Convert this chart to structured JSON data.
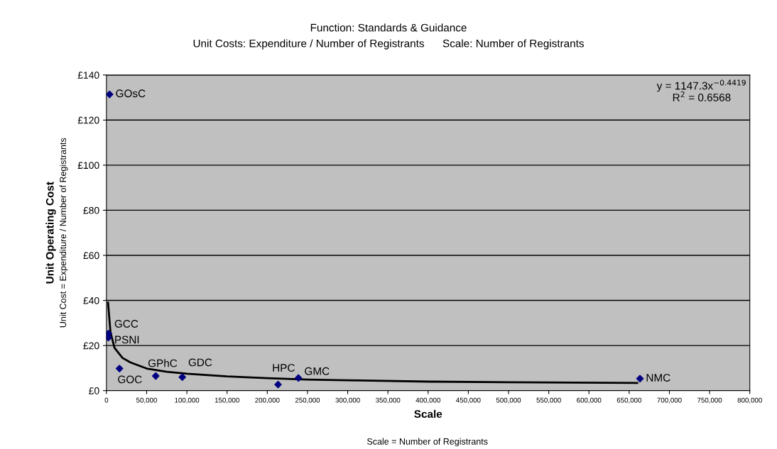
{
  "chart_data": {
    "type": "scatter",
    "title": "Function: Standards & Guidance",
    "subtitle": "Unit Costs: Expenditure / Number of Registrants      Scale: Number of Registrants",
    "xlabel": "Scale\nScale = Number of Registrants",
    "ylabel": "Unit Operating Cost\nUnit Cost = Expenditure / Number of Registrants",
    "series": [
      {
        "color": "#000080",
        "marker": "diamond",
        "x": [
          3900,
          2400,
          2400,
          16200,
          61300,
          94300,
          213400,
          238700,
          663400
        ],
        "values": [
          131.4,
          25.3,
          23.5,
          9.8,
          6.5,
          6.0,
          2.7,
          5.6,
          5.3
        ]
      },
      {
        "type": "line",
        "color": "#000000",
        "marker": "none",
        "line_style": "solid",
        "x": [
          2000,
          5000,
          10000,
          20000,
          30000,
          50000,
          75000,
          100000,
          150000,
          200000,
          250000,
          300000,
          400000,
          500000,
          660000
        ],
        "values": [
          39,
          26,
          19,
          14.5,
          12.5,
          9.8,
          8.4,
          7.5,
          6.3,
          5.5,
          4.9,
          4.6,
          4.0,
          3.7,
          3.4
        ]
      }
    ],
    "annotations": [
      {
        "text": "GOsC",
        "x": 3900,
        "y": 131.4
      },
      {
        "text": "GCC",
        "x": 2400,
        "y": 25.3
      },
      {
        "text": "PSNI",
        "x": 2400,
        "y": 23.5
      },
      {
        "text": "GOC",
        "x": 16200,
        "y": 9.8
      },
      {
        "text": "GPhC",
        "x": 61300,
        "y": 6.5
      },
      {
        "text": "GDC",
        "x": 94300,
        "y": 6.0
      },
      {
        "text": "HPC",
        "x": 213400,
        "y": 2.7
      },
      {
        "text": "GMC",
        "x": 238700,
        "y": 5.6
      },
      {
        "text": "NMC",
        "x": 663400,
        "y": 5.3
      },
      "y = 1147.3x$^{−0.4419}$\nR$^{2}$ = 0.6568"
    ],
    "xlim": [
      0,
      800000
    ],
    "xticks": [
      0,
      {
        "value": 50000,
        "label": "50,000"
      },
      {
        "value": 100000,
        "label": "100,000"
      },
      {
        "value": 150000,
        "label": "150,000"
      },
      {
        "value": 200000,
        "label": "200,000"
      },
      {
        "value": 250000,
        "label": "250,000"
      },
      {
        "value": 300000,
        "label": "300,000"
      },
      {
        "value": 350000,
        "label": "350,000"
      },
      {
        "value": 400000,
        "label": "400,000"
      },
      {
        "value": 450000,
        "label": "450,000"
      },
      {
        "value": 500000,
        "label": "500,000"
      },
      {
        "value": 550000,
        "label": "550,000"
      },
      {
        "value": 600000,
        "label": "600,000"
      },
      {
        "value": 650000,
        "label": "650,000"
      },
      {
        "value": 700000,
        "label": "700,000"
      },
      {
        "value": 750000,
        "label": "750,000"
      },
      {
        "value": 800000,
        "label": "800,000"
      }
    ],
    "ylim": [
      0,
      140
    ],
    "yticks": [
      {
        "value": 0,
        "label": "£0"
      },
      {
        "value": 20,
        "label": "£20"
      },
      {
        "value": 40,
        "label": "£40"
      },
      {
        "value": 60,
        "label": "£60"
      },
      {
        "value": 80,
        "label": "£80"
      },
      {
        "value": 100,
        "label": "£100"
      },
      {
        "value": 120,
        "label": "£120"
      },
      {
        "value": 140,
        "label": "£140"
      }
    ],
    "grid": "y",
    "legend": false
  }
}
